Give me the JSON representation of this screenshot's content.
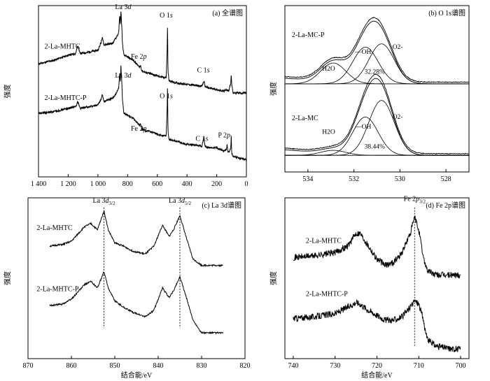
{
  "colors": {
    "line": "#000000",
    "background": "#ffffff"
  },
  "chart_data": [
    {
      "id": "a",
      "type": "line",
      "title": "(a) 全谱图",
      "ylabel": "强度",
      "xlim": [
        1400,
        0
      ],
      "x_ticks": [
        1400,
        1200,
        1000,
        800,
        600,
        400,
        200,
        0
      ],
      "x_tick_labels": [
        "1 400",
        "1 200",
        "1 000",
        "800",
        "600",
        "400",
        "200",
        "0"
      ],
      "ylim": [
        0,
        100
      ],
      "series": [
        {
          "name": "2-La-MHTC",
          "x": [
            1400,
            1300,
            1200,
            1150,
            1135,
            1120,
            1050,
            1000,
            980,
            970,
            960,
            900,
            880,
            860,
            853,
            849,
            845,
            838,
            835,
            825,
            800,
            760,
            740,
            720,
            712,
            705,
            680,
            640,
            600,
            560,
            540,
            534,
            531,
            528,
            520,
            480,
            400,
            300,
            290,
            285,
            280,
            260,
            200,
            150,
            135,
            120,
            105,
            102,
            99,
            90,
            50,
            0
          ],
          "y": [
            66,
            68,
            71,
            72,
            77,
            72,
            73,
            74,
            78,
            82,
            77,
            78,
            81,
            84,
            95,
            88,
            97,
            86,
            78,
            71,
            70,
            68,
            66,
            64,
            65,
            62,
            61,
            60,
            59,
            58,
            58,
            73,
            90,
            61,
            56,
            55,
            54,
            53,
            55,
            56,
            53,
            52,
            51,
            50,
            51,
            50,
            55,
            60,
            54,
            49,
            49,
            49
          ]
        },
        {
          "name": "2-La-MHTC-P",
          "x": [
            1400,
            1300,
            1200,
            1150,
            1135,
            1120,
            1050,
            1000,
            980,
            970,
            960,
            900,
            880,
            860,
            853,
            849,
            845,
            838,
            835,
            825,
            800,
            760,
            740,
            720,
            712,
            705,
            680,
            640,
            600,
            560,
            540,
            534,
            531,
            528,
            520,
            480,
            400,
            300,
            290,
            285,
            280,
            260,
            200,
            150,
            135,
            130,
            125,
            120,
            105,
            102,
            99,
            90,
            50,
            0
          ],
          "y": [
            37,
            38,
            40,
            41,
            44,
            40,
            41,
            42,
            45,
            48,
            44,
            46,
            48,
            52,
            61,
            55,
            65,
            53,
            45,
            37,
            36,
            34,
            32,
            30,
            31,
            28,
            27,
            26,
            25,
            24,
            24,
            39,
            54,
            26,
            22,
            21,
            19,
            18,
            22,
            23,
            18,
            17,
            17,
            15,
            16,
            19,
            15,
            14,
            17,
            25,
            14,
            12,
            11,
            10
          ]
        }
      ],
      "annotations": [
        {
          "text": "La 3",
          "sub": "d",
          "x": 830,
          "y": 98
        },
        {
          "text": "O 1",
          "sub": "s",
          "x": 540,
          "y": 93
        },
        {
          "text": "Fe 2",
          "sub": "p",
          "x": 725,
          "y": 69
        },
        {
          "text": "C 1",
          "sub": "s",
          "x": 290,
          "y": 61
        },
        {
          "text": "La 3",
          "sub": "d",
          "x": 830,
          "y": 58
        },
        {
          "text": "O 1",
          "sub": "s",
          "x": 540,
          "y": 46
        },
        {
          "text": "Fe 2",
          "sub": "p",
          "x": 725,
          "y": 27
        },
        {
          "text": "C 1",
          "sub": "s",
          "x": 300,
          "y": 21
        },
        {
          "text": "P 2",
          "sub": "p",
          "x": 150,
          "y": 23
        }
      ],
      "labels": [
        {
          "text": "2-La-MHTC",
          "x": 1360,
          "y": 75
        },
        {
          "text": "2-La-MHTC-P",
          "x": 1360,
          "y": 45
        }
      ]
    },
    {
      "id": "b",
      "type": "line",
      "title": "(b) O 1s谱图",
      "ylabel": "强度",
      "xlim": [
        535,
        527
      ],
      "x_ticks": [
        534,
        532,
        530,
        528
      ],
      "x_tick_labels": [
        "534",
        "532",
        "530",
        "528"
      ],
      "ylim": [
        0,
        100
      ],
      "upper": {
        "label": "2-La-MC-P",
        "peaks": [
          {
            "name": "H2O",
            "center": 532.9,
            "amp": 12.5
          },
          {
            "name": "—OH",
            "center": 531.5,
            "amp": 22
          },
          {
            "name": "O2-",
            "center": 530.8,
            "amp": 24
          }
        ],
        "base": 53,
        "percent": "32.28%"
      },
      "lower": {
        "label": "2-La-MC",
        "peaks": [
          {
            "name": "H2O",
            "center": 532.9,
            "amp": 3
          },
          {
            "name": "—OH",
            "center": 531.5,
            "amp": 23
          },
          {
            "name": "O2-",
            "center": 530.8,
            "amp": 33
          }
        ],
        "base": 10,
        "percent": "38.44%"
      }
    },
    {
      "id": "c",
      "type": "line",
      "title": "(c) La 3d谱图",
      "ylabel": "强度",
      "xlabel": "结合能/eV",
      "xlim": [
        870,
        820
      ],
      "x_ticks": [
        870,
        860,
        850,
        840,
        830,
        820
      ],
      "x_tick_labels": [
        "870",
        "860",
        "850",
        "840",
        "830",
        "820"
      ],
      "ylim": [
        0,
        100
      ],
      "series": [
        {
          "name": "2-La-MHTC",
          "x": [
            865,
            862,
            860,
            857,
            855.5,
            854,
            852.5,
            851.5,
            850,
            848,
            846,
            843,
            841,
            839,
            837.5,
            836.5,
            835,
            833.5,
            832,
            830,
            827,
            825
          ],
          "y": [
            70,
            71,
            73,
            82,
            84,
            80,
            92,
            80,
            72,
            70,
            67,
            65,
            70,
            83,
            76,
            80,
            89,
            75,
            62,
            58,
            58,
            58
          ]
        },
        {
          "name": "2-La-MHTC-P",
          "x": [
            865,
            862,
            860,
            857,
            855.5,
            854,
            852.5,
            851.5,
            850,
            848,
            846,
            843,
            841,
            839,
            837.5,
            836.5,
            835,
            833.5,
            832,
            830,
            827,
            825
          ],
          "y": [
            33,
            34,
            37,
            46,
            48,
            44,
            54,
            44,
            36,
            32,
            29,
            26,
            30,
            44,
            38,
            42,
            51,
            38,
            24,
            16,
            16,
            16
          ]
        }
      ],
      "peak_labels": [
        {
          "text": "La 3",
          "sub": "d",
          "subsub": "3/2",
          "x": 852.5
        },
        {
          "text": "La 3",
          "sub": "d",
          "subsub": "5/2",
          "x": 835
        }
      ]
    },
    {
      "id": "d",
      "type": "line",
      "title": "(d) Fe 2p谱图",
      "ylabel": "强度",
      "xlabel": "结合能/eV",
      "xlim": [
        742,
        698
      ],
      "x_ticks": [
        740,
        730,
        720,
        710,
        700
      ],
      "x_tick_labels": [
        "740",
        "730",
        "720",
        "710",
        "700"
      ],
      "ylim": [
        0,
        100
      ],
      "series": [
        {
          "name": "2-La-MHTC",
          "x": [
            740,
            735,
            730,
            727,
            725,
            724,
            722,
            720,
            718,
            716,
            714,
            712,
            711,
            710,
            709,
            708,
            706,
            704,
            702,
            700
          ],
          "y": [
            63,
            64,
            66,
            70,
            78,
            78,
            70,
            62,
            58,
            60,
            66,
            78,
            88,
            80,
            64,
            55,
            52,
            52,
            52,
            52
          ]
        },
        {
          "name": "2-La-MHTC-P",
          "x": [
            740,
            735,
            730,
            727,
            725,
            724,
            722,
            720,
            718,
            716,
            714,
            712,
            711,
            710,
            709,
            708,
            706,
            704,
            702,
            700
          ],
          "y": [
            25,
            26,
            28,
            32,
            35,
            34,
            30,
            27,
            24,
            24,
            26,
            32,
            36,
            34,
            25,
            12,
            8,
            7,
            6,
            6
          ]
        }
      ],
      "peak_labels": [
        {
          "text": "Fe 2",
          "sub": "p",
          "subsub": "3/2",
          "x": 711
        }
      ]
    }
  ]
}
